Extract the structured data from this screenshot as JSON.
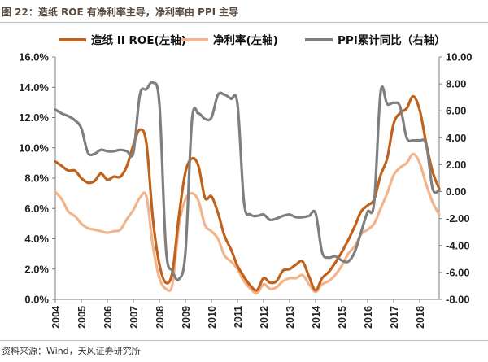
{
  "header": {
    "title": "图 22：造纸 ROE 有净利率主导，净利率由 PPI 主导"
  },
  "footer": {
    "source": "资料来源：Wind，天风证券研究所"
  },
  "chart_data": {
    "type": "line",
    "x_ticks": [
      "2004",
      "2005",
      "2006",
      "2007",
      "2008",
      "2009",
      "2010",
      "2011",
      "2012",
      "2013",
      "2014",
      "2015",
      "2016",
      "2017",
      "2018"
    ],
    "xlim": [
      2004,
      2018.75
    ],
    "y_left": {
      "ticks": [
        "0.0%",
        "2.0%",
        "4.0%",
        "6.0%",
        "8.0%",
        "10.0%",
        "12.0%",
        "14.0%",
        "16.0%"
      ],
      "lim": [
        0,
        16
      ]
    },
    "y_right": {
      "ticks": [
        "-8.00",
        "-6.00",
        "-4.00",
        "-2.00",
        "0.00",
        "2.00",
        "4.00",
        "6.00",
        "8.00",
        "10.00"
      ],
      "lim": [
        -8,
        10
      ]
    },
    "legend_position": "top",
    "grid": false,
    "series": [
      {
        "name": "造纸 II ROE(左轴)",
        "axis": "left",
        "color": "#c0621b",
        "x": [
          2004,
          2004.25,
          2004.5,
          2004.75,
          2005,
          2005.25,
          2005.5,
          2005.75,
          2006,
          2006.25,
          2006.5,
          2006.75,
          2007,
          2007.25,
          2007.5,
          2007.75,
          2008,
          2008.25,
          2008.5,
          2008.75,
          2009,
          2009.25,
          2009.5,
          2009.75,
          2010,
          2010.25,
          2010.5,
          2010.75,
          2011,
          2011.25,
          2011.5,
          2011.75,
          2012,
          2012.25,
          2012.5,
          2012.75,
          2013,
          2013.25,
          2013.5,
          2013.75,
          2014,
          2014.25,
          2014.5,
          2014.75,
          2015,
          2015.25,
          2015.5,
          2015.75,
          2016,
          2016.25,
          2016.5,
          2016.75,
          2017,
          2017.25,
          2017.5,
          2017.75,
          2018,
          2018.25,
          2018.5,
          2018.75
        ],
        "values": [
          9.1,
          8.8,
          8.5,
          8.5,
          8.0,
          7.7,
          7.8,
          8.3,
          7.9,
          8.1,
          8.1,
          8.8,
          10.2,
          11.2,
          10.3,
          5.3,
          2.3,
          1.1,
          1.8,
          5.5,
          8.4,
          9.3,
          8.8,
          6.7,
          6.8,
          5.7,
          4.2,
          3.3,
          2.2,
          1.5,
          0.9,
          0.6,
          1.4,
          1.1,
          1.2,
          1.9,
          2.0,
          2.3,
          2.5,
          1.5,
          0.6,
          1.4,
          1.8,
          2.4,
          3.1,
          3.9,
          4.8,
          5.8,
          6.2,
          6.6,
          8.2,
          9.3,
          11.6,
          12.3,
          12.6,
          13.4,
          12.5,
          10.3,
          8.4,
          7.3
        ]
      },
      {
        "name": "净利率(左轴)",
        "axis": "left",
        "color": "#f2b48d",
        "x": [
          2004,
          2004.25,
          2004.5,
          2004.75,
          2005,
          2005.25,
          2005.5,
          2005.75,
          2006,
          2006.25,
          2006.5,
          2006.75,
          2007,
          2007.25,
          2007.5,
          2007.75,
          2008,
          2008.25,
          2008.5,
          2008.75,
          2009,
          2009.25,
          2009.5,
          2009.75,
          2010,
          2010.25,
          2010.5,
          2010.75,
          2011,
          2011.25,
          2011.5,
          2011.75,
          2012,
          2012.25,
          2012.5,
          2012.75,
          2013,
          2013.25,
          2013.5,
          2013.75,
          2014,
          2014.25,
          2014.5,
          2014.75,
          2015,
          2015.25,
          2015.5,
          2015.75,
          2016,
          2016.25,
          2016.5,
          2016.75,
          2017,
          2017.25,
          2017.5,
          2017.75,
          2018,
          2018.25,
          2018.5,
          2018.75
        ],
        "values": [
          7.1,
          6.6,
          5.8,
          5.5,
          5.0,
          4.7,
          4.6,
          4.5,
          4.4,
          4.5,
          4.6,
          5.3,
          5.9,
          6.7,
          6.8,
          3.5,
          1.4,
          0.7,
          1.0,
          4.9,
          6.6,
          7.0,
          6.5,
          4.9,
          4.5,
          4.0,
          2.9,
          2.5,
          2.0,
          1.2,
          0.7,
          0.4,
          1.0,
          0.7,
          0.8,
          1.2,
          1.4,
          1.4,
          1.6,
          1.0,
          0.5,
          1.0,
          1.2,
          1.6,
          2.2,
          3.0,
          3.5,
          4.3,
          4.6,
          5.0,
          6.0,
          7.0,
          8.2,
          8.7,
          9.0,
          9.6,
          9.0,
          7.6,
          6.4,
          5.6
        ]
      },
      {
        "name": "PPI累计同比（右轴）",
        "axis": "right",
        "color": "#7f7f7f",
        "x": [
          2004,
          2004.25,
          2004.5,
          2004.75,
          2005,
          2005.25,
          2005.5,
          2005.75,
          2006,
          2006.25,
          2006.5,
          2006.75,
          2007,
          2007.25,
          2007.5,
          2007.75,
          2008,
          2008.25,
          2008.5,
          2008.75,
          2009,
          2009.25,
          2009.5,
          2009.75,
          2010,
          2010.25,
          2010.5,
          2010.75,
          2011,
          2011.25,
          2011.5,
          2011.75,
          2012,
          2012.25,
          2012.5,
          2012.75,
          2013,
          2013.25,
          2013.5,
          2013.75,
          2014,
          2014.25,
          2014.5,
          2014.75,
          2015,
          2015.25,
          2015.5,
          2015.75,
          2016,
          2016.25,
          2016.5,
          2016.75,
          2017,
          2017.25,
          2017.5,
          2017.75,
          2018,
          2018.25,
          2018.5,
          2018.75
        ],
        "values": [
          6.1,
          5.8,
          5.6,
          5.3,
          4.7,
          2.9,
          2.8,
          3.1,
          3.0,
          3.0,
          3.1,
          3.0,
          2.9,
          7.2,
          7.6,
          8.1,
          6.5,
          -4.2,
          -5.9,
          -6.5,
          -4.5,
          5.3,
          5.8,
          5.4,
          5.5,
          7.2,
          7.2,
          6.9,
          6.5,
          -0.8,
          -1.7,
          -1.8,
          -1.7,
          -2.1,
          -2.0,
          -1.8,
          -1.7,
          -1.9,
          -1.9,
          -1.8,
          -1.6,
          -4.5,
          -4.9,
          -4.8,
          -5.1,
          -5.2,
          -4.5,
          -3.0,
          -1.5,
          -0.8,
          7.4,
          6.5,
          6.6,
          6.3,
          4.0,
          3.8,
          3.8,
          3.5,
          0.2,
          0.1
        ]
      }
    ]
  }
}
